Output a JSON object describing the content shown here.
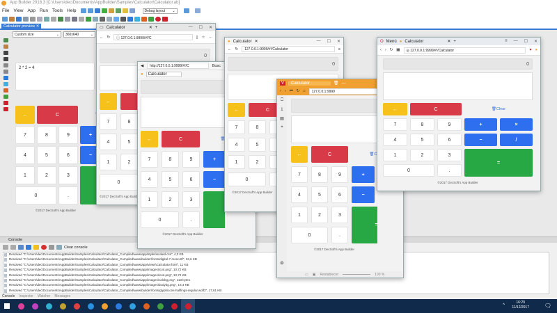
{
  "app": {
    "title": "App Builder 2018.3 [C:\\Users\\dec\\Documents\\AppBuilder\\Samples\\Calculator\\Calculator.ab]",
    "menu": [
      "File",
      "View",
      "App",
      "Run",
      "Tools",
      "Help"
    ],
    "layout_select": "Debug layout",
    "preview_tab": "Calculator preview",
    "size_select": "Custom size",
    "resolution_select": "360x640",
    "expression": "2 * 2 = 4"
  },
  "calculator": {
    "display": "0",
    "clear_link": "Clear",
    "footer": "©2017 DecSoft's App Builder",
    "keys": [
      "←",
      "C",
      "7",
      "8",
      "9",
      "+",
      "×",
      "4",
      "5",
      "6",
      "−",
      "/",
      "1",
      "2",
      "3",
      "=",
      "0",
      "."
    ]
  },
  "windows": {
    "edge": {
      "tab": "Calculator",
      "url": "127.0.0.1:9999/#!/C"
    },
    "ie": {
      "tab": "Calculator",
      "url": "http://127.0.0.1:9999/#!/C",
      "extra": "Busc"
    },
    "firefox": {
      "tab": "Calculator",
      "url": "127.0.0.1:9999/#!/Calculator"
    },
    "vivaldi": {
      "tab": "Calculator",
      "url": "127.0.0.1:9999",
      "reset": "Restablecer",
      "zoom": "100 %"
    },
    "opera": {
      "menu": "Menú",
      "tab": "Calculator",
      "url": "127.0.0.1:9999/#!/Calculator"
    }
  },
  "console": {
    "title": "Console",
    "clear": "Clear console",
    "lines": [
      "Resolved \"C:\\Users\\dec\\Documents\\AppBuilder\\Samples\\Calculator\\Calculator_Compiled\\www\\app\\styles\\scaled.css\", 4,3 KB",
      "Resolved \"C:\\Users\\dec\\Documents\\AppBuilder\\Samples\\Calculator\\Calculator_Compiled\\www\\builder\\fonts\\digital-7-mono.ttf\", 33,6 KB",
      "Resolved \"C:\\Users\\dec\\Documents\\AppBuilder\\Samples\\Calculator\\Calculator_Compiled\\www\\app\\views\\Calculator.html\", 11 KB",
      "Resolved \"C:\\Users\\dec\\Documents\\AppBuilder\\Samples\\Calculator\\Calculator_Compiled\\www\\app\\images\\icon.png\", 10,72 KB",
      "Resolved \"C:\\Users\\dec\\Documents\\AppBuilder\\Samples\\Calculator\\Calculator_Compiled\\www\\app\\images\\icon.png\", 10,72 KB",
      "Resolved \"C:\\Users\\dec\\Documents\\AppBuilder\\Samples\\Calculator\\Calculator_Compiled\\www\\app\\images\\calcbg.png\", 113 bytes",
      "Resolved \"C:\\Users\\dec\\Documents\\AppBuilder\\Samples\\Calculator\\Calculator_Compiled\\www\\app\\images\\bodybg.png\", 16,4 KB",
      "Resolved \"C:\\Users\\dec\\Documents\\AppBuilder\\Samples\\Calculator\\Calculator_Compiled\\www\\builder\\fonts\\glyphicons-halflings-regular.woff2\", 17,61 KB"
    ],
    "tabs": [
      "Console",
      "Inspector",
      "Watcher",
      "Messages"
    ]
  },
  "taskbar": {
    "time": "16:29",
    "date": "11/12/2017",
    "apps": [
      "start-icon",
      "media-icon",
      "photos-icon",
      "settings-icon",
      "explorer-icon",
      "store-icon",
      "pen-icon",
      "app-builder-icon",
      "edge-icon",
      "ie-icon",
      "firefox-icon",
      "chrome-icon",
      "vivaldi-icon",
      "opera-icon"
    ],
    "colors": [
      "#ffffff",
      "#e0409a",
      "#c040c0",
      "#30b0d0",
      "#c0a030",
      "#e04040",
      "#2a90e0",
      "#f0a030",
      "#2a7be0",
      "#30a0e0",
      "#e06020",
      "#40a040",
      "#d02030",
      "#d02030"
    ]
  },
  "colors": {
    "back": "#f7c11c",
    "clear": "#d83a47",
    "operator": "#2e6ff0",
    "equals": "#28a745",
    "accent": "#3a7bd5"
  }
}
